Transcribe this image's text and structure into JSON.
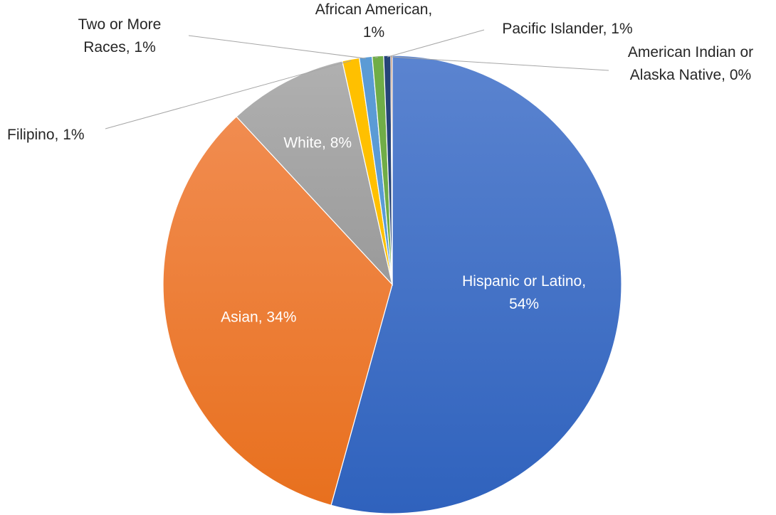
{
  "chart_data": {
    "type": "pie",
    "start_angle_deg": 0,
    "direction": "clockwise",
    "slices": [
      {
        "label": "Hispanic or Latino",
        "value": 54.3,
        "percent_label": "54%",
        "color": "#4472c4",
        "text_color": "#ffffff"
      },
      {
        "label": "Asian",
        "value": 33.8,
        "percent_label": "34%",
        "color": "#ed7d31",
        "text_color": "#ffffff"
      },
      {
        "label": "White",
        "value": 8.4,
        "percent_label": "8%",
        "color": "#a5a5a5",
        "text_color": "#ffffff"
      },
      {
        "label": "Filipino",
        "value": 1.2,
        "percent_label": "1%",
        "color": "#ffc000",
        "text_color": "#262626"
      },
      {
        "label": "Two or More Races",
        "value": 0.9,
        "percent_label": "1%",
        "color": "#5b9bd5",
        "text_color": "#262626"
      },
      {
        "label": "African American",
        "value": 0.8,
        "percent_label": "1%",
        "color": "#70ad47",
        "text_color": "#262626"
      },
      {
        "label": "Pacific Islander",
        "value": 0.5,
        "percent_label": "1%",
        "color": "#264478",
        "text_color": "#262626"
      },
      {
        "label": "American Indian or Alaska Native",
        "value": 0.1,
        "percent_label": "0%",
        "color": "#9e480e",
        "text_color": "#262626"
      }
    ]
  }
}
